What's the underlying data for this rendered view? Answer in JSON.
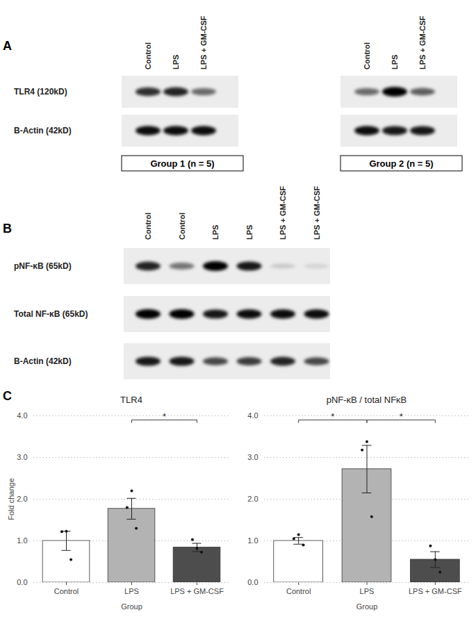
{
  "panels": [
    {
      "label": "A",
      "lanes": [
        "Control",
        "LPS",
        "LPS + GM-CSF"
      ],
      "rows": [
        "TLR4 (120kD)",
        "B-Actin (42kD)"
      ],
      "groups": [
        {
          "name": "Group 1 (n = 5)",
          "bands": [
            [
              0.8,
              0.85,
              0.55
            ],
            [
              0.95,
              0.95,
              0.95
            ]
          ]
        },
        {
          "name": "Group 2 (n = 5)",
          "bands": [
            [
              0.55,
              1.0,
              0.6
            ],
            [
              0.95,
              0.9,
              0.9
            ]
          ]
        }
      ]
    },
    {
      "label": "B",
      "lanes": [
        "Control",
        "Control",
        "LPS",
        "LPS",
        "LPS + GM-CSF",
        "LPS + GM-CSF"
      ],
      "rows": [
        "pNF-κB (65kD)",
        "Total NF-κB (65kD)",
        "B-Actin (42kD)"
      ],
      "bands": [
        [
          0.85,
          0.5,
          1.0,
          0.9,
          0.15,
          0.1
        ],
        [
          1.0,
          1.0,
          0.9,
          0.95,
          0.95,
          0.95
        ],
        [
          0.9,
          0.9,
          0.7,
          0.75,
          0.85,
          0.7
        ]
      ]
    }
  ],
  "chart_panel_label": "C",
  "chart_data": [
    {
      "type": "bar",
      "title": "TLR4",
      "categories": [
        "Control",
        "LPS",
        "LPS + GM-CSF"
      ],
      "values": [
        1.0,
        1.77,
        0.84
      ],
      "errors": [
        0.23,
        0.25,
        0.1
      ],
      "points": [
        [
          1.22,
          1.23,
          0.55
        ],
        [
          1.8,
          2.2,
          1.3
        ],
        [
          1.03,
          0.82,
          0.73
        ]
      ],
      "colors": [
        "#ffffff",
        "#b3b3b3",
        "#4d4d4d"
      ],
      "ylim": [
        0,
        4
      ],
      "yticks": [
        0,
        1,
        2,
        3,
        4
      ],
      "grid": true,
      "y_label": "Fold change",
      "x_label": "Group",
      "comparisons": [
        {
          "from": "LPS",
          "to": "LPS + GM-CSF",
          "label": "*",
          "y": 3.9
        }
      ]
    },
    {
      "type": "bar",
      "title": "pNF-κB / total NFκB",
      "categories": [
        "Control",
        "LPS",
        "LPS + GM-CSF"
      ],
      "values": [
        1.0,
        2.72,
        0.55
      ],
      "errors": [
        0.08,
        0.57,
        0.19
      ],
      "points": [
        [
          1.05,
          1.15,
          0.9
        ],
        [
          3.18,
          3.38,
          1.58
        ],
        [
          0.88,
          0.55,
          0.25
        ]
      ],
      "colors": [
        "#ffffff",
        "#b3b3b3",
        "#4d4d4d"
      ],
      "ylim": [
        0,
        4
      ],
      "yticks": [
        0,
        1,
        2,
        3,
        4
      ],
      "grid": true,
      "x_label": "Group",
      "comparisons": [
        {
          "from": "Control",
          "to": "LPS",
          "label": "*",
          "y": 3.9
        },
        {
          "from": "LPS",
          "to": "LPS + GM-CSF",
          "label": "*",
          "y": 3.9
        }
      ]
    }
  ]
}
